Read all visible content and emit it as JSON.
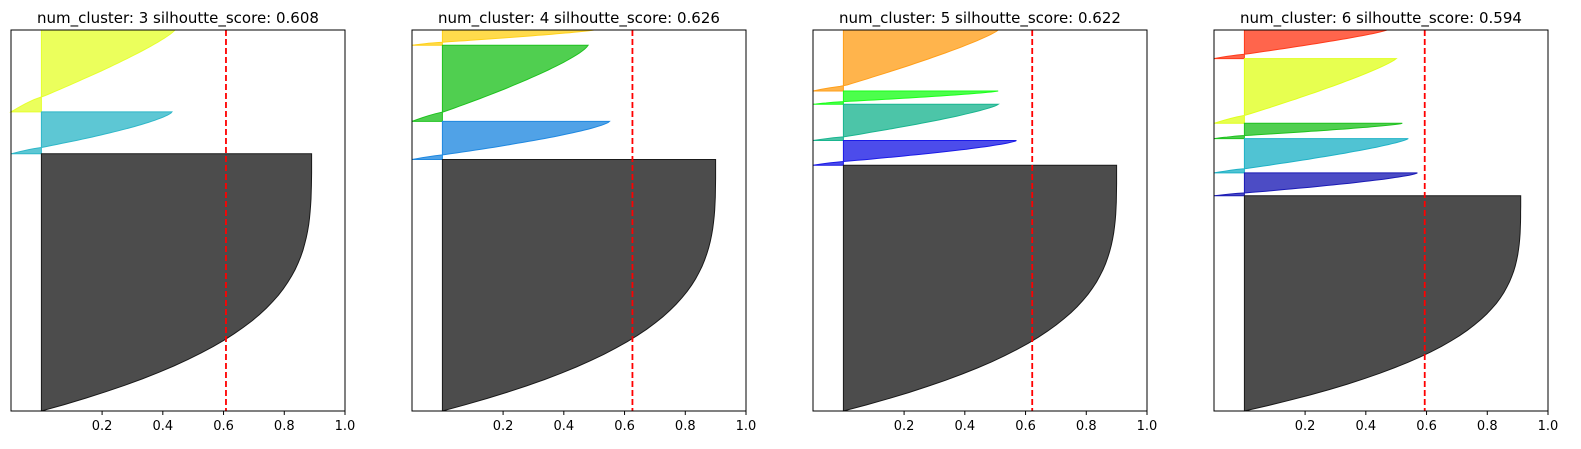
{
  "figure": {
    "titles": [
      "num_cluster: 3 silhoutte_score: 0.608",
      "num_cluster: 4 silhoutte_score: 0.626",
      "num_cluster: 5 silhoutte_score: 0.622",
      "num_cluster: 6 silhoutte_score: 0.594"
    ]
  },
  "chart_data": [
    {
      "type": "area",
      "chart_kind": "silhouette",
      "title": "num_cluster: 3 silhoutte_score: 0.608",
      "xlim": [
        -0.1,
        1.0
      ],
      "xticks": [
        "0.2",
        "0.4",
        "0.6",
        "0.8",
        "1.0"
      ],
      "yticks": [],
      "mean_silhouette": 0.608,
      "mean_line_color": "#ff0000",
      "clusters": [
        {
          "color": "#e6ff2e",
          "size": 0.215,
          "max": 0.44,
          "min": -0.1,
          "neg_frac": 0.18,
          "shape": 1.2
        },
        {
          "color": "#2fb7c8",
          "size": 0.11,
          "max": 0.43,
          "min": -0.1,
          "neg_frac": 0.15,
          "shape": 1.4
        },
        {
          "color": "#1a1a1a",
          "size": 0.675,
          "max": 0.89,
          "min": 0.0,
          "neg_frac": 0.0,
          "shape": 3.5
        }
      ]
    },
    {
      "type": "area",
      "chart_kind": "silhouette",
      "title": "num_cluster: 4 silhoutte_score: 0.626",
      "xlim": [
        -0.1,
        1.0
      ],
      "xticks": [
        "0.2",
        "0.4",
        "0.6",
        "0.8",
        "1.0"
      ],
      "yticks": [],
      "mean_silhouette": 0.626,
      "mean_line_color": "#ff0000",
      "clusters": [
        {
          "color": "#ffd11a",
          "size": 0.04,
          "max": 0.5,
          "min": -0.1,
          "neg_frac": 0.2,
          "shape": 1.2
        },
        {
          "color": "#1fc21f",
          "size": 0.2,
          "max": 0.48,
          "min": -0.1,
          "neg_frac": 0.12,
          "shape": 1.3
        },
        {
          "color": "#1f88e0",
          "size": 0.1,
          "max": 0.55,
          "min": -0.1,
          "neg_frac": 0.12,
          "shape": 1.4
        },
        {
          "color": "#1a1a1a",
          "size": 0.66,
          "max": 0.9,
          "min": 0.0,
          "neg_frac": 0.0,
          "shape": 3.5
        }
      ]
    },
    {
      "type": "area",
      "chart_kind": "silhouette",
      "title": "num_cluster: 5 silhoutte_score: 0.622",
      "xlim": [
        -0.1,
        1.0
      ],
      "xticks": [
        "0.2",
        "0.4",
        "0.6",
        "0.8",
        "1.0"
      ],
      "yticks": [],
      "mean_silhouette": 0.622,
      "mean_line_color": "#ff0000",
      "clusters": [
        {
          "color": "#ff9f1a",
          "size": 0.16,
          "max": 0.51,
          "min": -0.1,
          "neg_frac": 0.08,
          "shape": 1.2
        },
        {
          "color": "#1aff1a",
          "size": 0.035,
          "max": 0.51,
          "min": -0.1,
          "neg_frac": 0.2,
          "shape": 1.3
        },
        {
          "color": "#1ab58f",
          "size": 0.095,
          "max": 0.51,
          "min": -0.1,
          "neg_frac": 0.1,
          "shape": 1.3
        },
        {
          "color": "#1a1ae6",
          "size": 0.065,
          "max": 0.57,
          "min": -0.1,
          "neg_frac": 0.15,
          "shape": 1.4
        },
        {
          "color": "#1a1a1a",
          "size": 0.645,
          "max": 0.9,
          "min": 0.0,
          "neg_frac": 0.0,
          "shape": 3.5
        }
      ]
    },
    {
      "type": "area",
      "chart_kind": "silhouette",
      "title": "num_cluster: 6 silhoutte_score: 0.594",
      "xlim": [
        -0.1,
        1.0
      ],
      "xticks": [
        "0.2",
        "0.4",
        "0.6",
        "0.8",
        "1.0"
      ],
      "yticks": [],
      "mean_silhouette": 0.594,
      "mean_line_color": "#ff0000",
      "clusters": [
        {
          "color": "#ff3a1a",
          "size": 0.075,
          "max": 0.47,
          "min": -0.1,
          "neg_frac": 0.15,
          "shape": 1.2
        },
        {
          "color": "#e0ff1f",
          "size": 0.17,
          "max": 0.5,
          "min": -0.1,
          "neg_frac": 0.12,
          "shape": 1.2
        },
        {
          "color": "#1fc21f",
          "size": 0.04,
          "max": 0.52,
          "min": -0.1,
          "neg_frac": 0.2,
          "shape": 1.3
        },
        {
          "color": "#1fb2c6",
          "size": 0.09,
          "max": 0.54,
          "min": -0.1,
          "neg_frac": 0.12,
          "shape": 1.3
        },
        {
          "color": "#1a1ab5",
          "size": 0.06,
          "max": 0.57,
          "min": -0.1,
          "neg_frac": 0.12,
          "shape": 1.4
        },
        {
          "color": "#1a1a1a",
          "size": 0.565,
          "max": 0.91,
          "min": 0.0,
          "neg_frac": 0.0,
          "shape": 3.5
        }
      ]
    }
  ]
}
